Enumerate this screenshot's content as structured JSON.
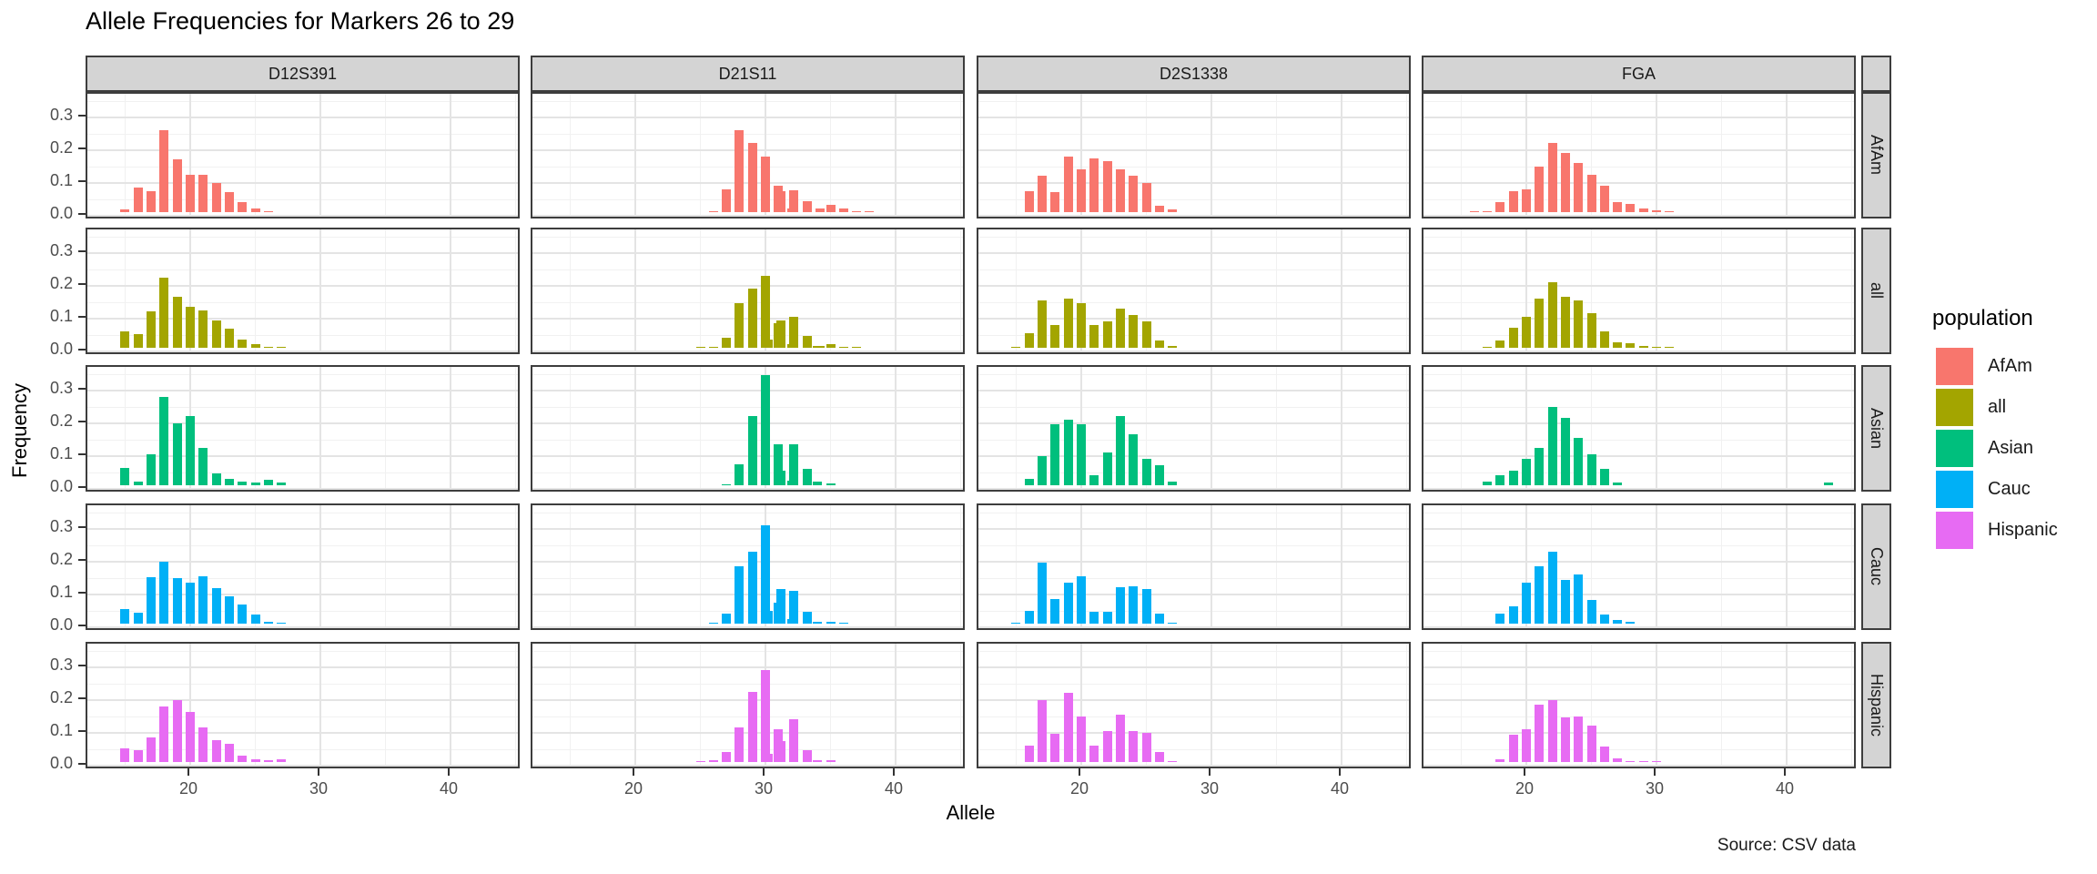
{
  "chart_data": {
    "type": "bar",
    "title": "Allele Frequencies for Markers 26 to 29",
    "xlabel": "Allele",
    "ylabel": "Frequency",
    "caption": "Source: CSV data",
    "facet": {
      "columns": [
        "D12S391",
        "D21S11",
        "D2S1338",
        "FGA"
      ],
      "rows": [
        "AfAm",
        "all",
        "Asian",
        "Cauc",
        "Hispanic"
      ]
    },
    "legend": {
      "title": "population",
      "position": "right",
      "entries": [
        {
          "label": "AfAm",
          "color": "#F8766D"
        },
        {
          "label": "all",
          "color": "#A3A500"
        },
        {
          "label": "Asian",
          "color": "#00BF7D"
        },
        {
          "label": "Cauc",
          "color": "#00B0F6"
        },
        {
          "label": "Hispanic",
          "color": "#E76BF3"
        }
      ]
    },
    "x_axis": {
      "ticks": [
        20,
        30,
        40
      ],
      "tick_labels": [
        "20",
        "30",
        "40"
      ],
      "minor_ticks": [
        15,
        25,
        35,
        45
      ],
      "range": [
        12.1,
        45.45
      ]
    },
    "y_axis": {
      "ticks": [
        0.0,
        0.1,
        0.2,
        0.3
      ],
      "tick_labels": [
        "0.0",
        "0.1",
        "0.2",
        "0.3"
      ],
      "minor_ticks": [
        0.05,
        0.15,
        0.25,
        0.35
      ],
      "range": [
        -0.019,
        0.372
      ]
    },
    "grid": true,
    "panels": [
      {
        "marker": "D12S391",
        "population": "AfAm",
        "bars": [
          [
            15,
            0.008
          ],
          [
            16,
            0.075
          ],
          [
            17,
            0.063
          ],
          [
            18,
            0.25
          ],
          [
            19,
            0.16
          ],
          [
            20,
            0.115
          ],
          [
            21,
            0.115
          ],
          [
            22,
            0.09
          ],
          [
            23,
            0.06
          ],
          [
            24,
            0.03
          ],
          [
            25,
            0.012
          ],
          [
            26,
            0.004
          ]
        ]
      },
      {
        "marker": "D21S11",
        "population": "AfAm",
        "bars": [
          [
            26,
            0.004
          ],
          [
            27,
            0.07
          ],
          [
            28,
            0.25
          ],
          [
            29,
            0.21
          ],
          [
            30,
            0.17
          ],
          [
            31,
            0.08
          ],
          [
            31.2,
            0.065
          ],
          [
            32,
            0.012
          ],
          [
            32.2,
            0.068
          ],
          [
            33.2,
            0.032
          ],
          [
            34.2,
            0.01
          ],
          [
            35,
            0.022
          ],
          [
            36,
            0.01
          ],
          [
            37,
            0.004
          ],
          [
            38,
            0.002
          ]
        ]
      },
      {
        "marker": "D2S1338",
        "population": "AfAm",
        "bars": [
          [
            16,
            0.065
          ],
          [
            17,
            0.11
          ],
          [
            18,
            0.062
          ],
          [
            19,
            0.17
          ],
          [
            20,
            0.13
          ],
          [
            21,
            0.165
          ],
          [
            22,
            0.155
          ],
          [
            23,
            0.13
          ],
          [
            24,
            0.11
          ],
          [
            25,
            0.09
          ],
          [
            26,
            0.02
          ],
          [
            27,
            0.008
          ]
        ]
      },
      {
        "marker": "FGA",
        "population": "AfAm",
        "bars": [
          [
            16,
            0.004
          ],
          [
            17,
            0.004
          ],
          [
            18,
            0.03
          ],
          [
            19,
            0.065
          ],
          [
            20,
            0.07
          ],
          [
            21,
            0.14
          ],
          [
            22,
            0.21
          ],
          [
            23,
            0.18
          ],
          [
            24,
            0.15
          ],
          [
            25,
            0.115
          ],
          [
            26,
            0.08
          ],
          [
            27,
            0.03
          ],
          [
            28,
            0.025
          ],
          [
            29,
            0.012
          ],
          [
            30,
            0.005
          ],
          [
            31,
            0.004
          ]
        ]
      },
      {
        "marker": "D12S391",
        "population": "all",
        "bars": [
          [
            15,
            0.05
          ],
          [
            16,
            0.042
          ],
          [
            17,
            0.11
          ],
          [
            18,
            0.215
          ],
          [
            19,
            0.155
          ],
          [
            20,
            0.125
          ],
          [
            21,
            0.115
          ],
          [
            22,
            0.082
          ],
          [
            23,
            0.058
          ],
          [
            24,
            0.025
          ],
          [
            25,
            0.01
          ],
          [
            26,
            0.004
          ],
          [
            27,
            0.002
          ]
        ]
      },
      {
        "marker": "D21S11",
        "population": "all",
        "bars": [
          [
            25,
            0.003
          ],
          [
            26,
            0.003
          ],
          [
            27,
            0.03
          ],
          [
            28,
            0.135
          ],
          [
            29,
            0.18
          ],
          [
            30,
            0.22
          ],
          [
            30.2,
            0.025
          ],
          [
            31,
            0.075
          ],
          [
            31.2,
            0.082
          ],
          [
            32,
            0.012
          ],
          [
            32.2,
            0.095
          ],
          [
            33.2,
            0.035
          ],
          [
            34,
            0.005
          ],
          [
            34.2,
            0.006
          ],
          [
            35,
            0.01
          ],
          [
            36,
            0.004
          ],
          [
            37,
            0.002
          ]
        ]
      },
      {
        "marker": "D2S1338",
        "population": "all",
        "bars": [
          [
            15,
            0.004
          ],
          [
            16,
            0.045
          ],
          [
            17,
            0.145
          ],
          [
            18,
            0.07
          ],
          [
            19,
            0.15
          ],
          [
            20,
            0.135
          ],
          [
            21,
            0.07
          ],
          [
            22,
            0.08
          ],
          [
            23,
            0.12
          ],
          [
            24,
            0.1
          ],
          [
            25,
            0.08
          ],
          [
            26,
            0.022
          ],
          [
            27,
            0.005
          ]
        ]
      },
      {
        "marker": "FGA",
        "population": "all",
        "bars": [
          [
            17,
            0.004
          ],
          [
            18,
            0.022
          ],
          [
            19,
            0.06
          ],
          [
            20,
            0.095
          ],
          [
            21,
            0.15
          ],
          [
            22,
            0.2
          ],
          [
            23,
            0.155
          ],
          [
            24,
            0.145
          ],
          [
            25,
            0.105
          ],
          [
            26,
            0.05
          ],
          [
            27,
            0.018
          ],
          [
            28,
            0.015
          ],
          [
            29,
            0.006
          ],
          [
            30,
            0.003
          ],
          [
            31,
            0.002
          ]
        ]
      },
      {
        "marker": "D12S391",
        "population": "Asian",
        "bars": [
          [
            15,
            0.052
          ],
          [
            16,
            0.01
          ],
          [
            17,
            0.095
          ],
          [
            18,
            0.27
          ],
          [
            19,
            0.19
          ],
          [
            20,
            0.21
          ],
          [
            21,
            0.115
          ],
          [
            22,
            0.036
          ],
          [
            23,
            0.02
          ],
          [
            24,
            0.01
          ],
          [
            25,
            0.008
          ],
          [
            26,
            0.018
          ],
          [
            27,
            0.008
          ]
        ]
      },
      {
        "marker": "D21S11",
        "population": "Asian",
        "bars": [
          [
            27,
            0.004
          ],
          [
            28,
            0.065
          ],
          [
            29,
            0.21
          ],
          [
            30,
            0.335
          ],
          [
            31,
            0.125
          ],
          [
            31.2,
            0.045
          ],
          [
            32,
            0.015
          ],
          [
            32.2,
            0.125
          ],
          [
            33.2,
            0.05
          ],
          [
            34,
            0.01
          ],
          [
            35,
            0.005
          ]
        ]
      },
      {
        "marker": "D2S1338",
        "population": "Asian",
        "bars": [
          [
            16,
            0.02
          ],
          [
            17,
            0.09
          ],
          [
            18,
            0.185
          ],
          [
            19,
            0.2
          ],
          [
            20,
            0.185
          ],
          [
            21,
            0.03
          ],
          [
            22,
            0.1
          ],
          [
            23,
            0.21
          ],
          [
            24,
            0.155
          ],
          [
            25,
            0.08
          ],
          [
            26,
            0.06
          ],
          [
            27,
            0.012
          ]
        ]
      },
      {
        "marker": "FGA",
        "population": "Asian",
        "bars": [
          [
            17,
            0.01
          ],
          [
            18,
            0.03
          ],
          [
            19,
            0.045
          ],
          [
            20,
            0.08
          ],
          [
            21,
            0.115
          ],
          [
            22,
            0.24
          ],
          [
            23,
            0.205
          ],
          [
            24,
            0.145
          ],
          [
            25,
            0.095
          ],
          [
            26,
            0.05
          ],
          [
            27,
            0.008
          ],
          [
            43.2,
            0.008
          ]
        ]
      },
      {
        "marker": "D12S391",
        "population": "Cauc",
        "bars": [
          [
            15,
            0.045
          ],
          [
            16,
            0.032
          ],
          [
            17,
            0.142
          ],
          [
            18,
            0.19
          ],
          [
            19,
            0.139
          ],
          [
            20,
            0.125
          ],
          [
            21,
            0.144
          ],
          [
            22,
            0.107
          ],
          [
            23,
            0.084
          ],
          [
            24,
            0.058
          ],
          [
            25,
            0.029
          ],
          [
            26,
            0.005
          ],
          [
            27,
            0.003
          ]
        ]
      },
      {
        "marker": "D21S11",
        "population": "Cauc",
        "bars": [
          [
            26,
            0.004
          ],
          [
            27,
            0.03
          ],
          [
            28,
            0.175
          ],
          [
            29,
            0.22
          ],
          [
            30,
            0.3
          ],
          [
            30.2,
            0.04
          ],
          [
            31,
            0.065
          ],
          [
            31.2,
            0.105
          ],
          [
            32,
            0.015
          ],
          [
            32.2,
            0.1
          ],
          [
            33.2,
            0.035
          ],
          [
            34,
            0.005
          ],
          [
            35,
            0.006
          ],
          [
            36,
            0.003
          ]
        ]
      },
      {
        "marker": "D2S1338",
        "population": "Cauc",
        "bars": [
          [
            15,
            0.004
          ],
          [
            16,
            0.04
          ],
          [
            17,
            0.185
          ],
          [
            18,
            0.075
          ],
          [
            19,
            0.125
          ],
          [
            20,
            0.145
          ],
          [
            21,
            0.035
          ],
          [
            22,
            0.035
          ],
          [
            23,
            0.11
          ],
          [
            24,
            0.115
          ],
          [
            25,
            0.105
          ],
          [
            26,
            0.03
          ],
          [
            27,
            0.004
          ]
        ]
      },
      {
        "marker": "FGA",
        "population": "Cauc",
        "bars": [
          [
            18,
            0.03
          ],
          [
            19,
            0.054
          ],
          [
            20,
            0.126
          ],
          [
            21,
            0.175
          ],
          [
            22,
            0.22
          ],
          [
            23,
            0.134
          ],
          [
            24,
            0.149
          ],
          [
            25,
            0.072
          ],
          [
            26,
            0.028
          ],
          [
            27,
            0.012
          ],
          [
            28,
            0.005
          ]
        ]
      },
      {
        "marker": "D12S391",
        "population": "Hispanic",
        "bars": [
          [
            15,
            0.041
          ],
          [
            16,
            0.037
          ],
          [
            17,
            0.075
          ],
          [
            18,
            0.17
          ],
          [
            19,
            0.19
          ],
          [
            20,
            0.153
          ],
          [
            21,
            0.105
          ],
          [
            22,
            0.066
          ],
          [
            23,
            0.055
          ],
          [
            24,
            0.019
          ],
          [
            25,
            0.008
          ],
          [
            26,
            0.006
          ],
          [
            27,
            0.008
          ]
        ]
      },
      {
        "marker": "D21S11",
        "population": "Hispanic",
        "bars": [
          [
            25,
            0.004
          ],
          [
            26,
            0.005
          ],
          [
            27,
            0.03
          ],
          [
            28,
            0.105
          ],
          [
            29,
            0.215
          ],
          [
            30,
            0.28
          ],
          [
            30.2,
            0.025
          ],
          [
            31,
            0.1
          ],
          [
            31.2,
            0.065
          ],
          [
            32.2,
            0.13
          ],
          [
            33.2,
            0.035
          ],
          [
            34,
            0.005
          ],
          [
            35,
            0.005
          ]
        ]
      },
      {
        "marker": "D2S1338",
        "population": "Hispanic",
        "bars": [
          [
            16,
            0.05
          ],
          [
            17,
            0.19
          ],
          [
            18,
            0.085
          ],
          [
            19,
            0.21
          ],
          [
            20,
            0.14
          ],
          [
            21,
            0.05
          ],
          [
            22,
            0.095
          ],
          [
            23,
            0.145
          ],
          [
            24,
            0.095
          ],
          [
            25,
            0.09
          ],
          [
            26,
            0.03
          ],
          [
            27,
            0.004
          ]
        ]
      },
      {
        "marker": "FGA",
        "population": "Hispanic",
        "bars": [
          [
            18,
            0.009
          ],
          [
            19,
            0.084
          ],
          [
            20,
            0.099
          ],
          [
            21,
            0.176
          ],
          [
            22,
            0.19
          ],
          [
            23,
            0.135
          ],
          [
            24,
            0.14
          ],
          [
            25,
            0.11
          ],
          [
            26,
            0.046
          ],
          [
            27,
            0.012
          ],
          [
            28,
            0.004
          ],
          [
            29,
            0.003
          ],
          [
            30,
            0.002
          ]
        ]
      }
    ]
  }
}
